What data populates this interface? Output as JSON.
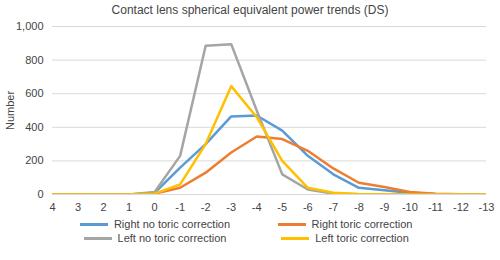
{
  "chart_data": {
    "type": "line",
    "title": "Contact lens spherical equivalent power trends (DS)",
    "y_label": "Number",
    "x": [
      4,
      3,
      2,
      1,
      0,
      -1,
      -2,
      -3,
      -4,
      -5,
      -6,
      -7,
      -8,
      -9,
      -10,
      -11,
      -12,
      -13
    ],
    "xlim": [
      4,
      -13
    ],
    "xticks": [
      4,
      3,
      2,
      1,
      0,
      -1,
      -2,
      -3,
      -4,
      -5,
      -6,
      -7,
      -8,
      -9,
      -10,
      -11,
      -12,
      -13
    ],
    "ylim": [
      0,
      1000
    ],
    "yticks": [
      0,
      200,
      400,
      600,
      800,
      {
        "value": 1000,
        "label": "1,000"
      }
    ],
    "grid": true,
    "legend": "bottom",
    "series": [
      {
        "name": "Right no toric correction",
        "color": "#5b9bd5",
        "values": [
          0,
          0,
          0,
          0,
          10,
          160,
          300,
          465,
          470,
          380,
          230,
          120,
          40,
          25,
          10,
          3,
          1,
          0
        ]
      },
      {
        "name": "Right toric correction",
        "color": "#ed7d31",
        "values": [
          0,
          0,
          0,
          0,
          5,
          40,
          130,
          250,
          345,
          330,
          260,
          155,
          70,
          45,
          15,
          5,
          2,
          0
        ]
      },
      {
        "name": "Left no toric correction",
        "color": "#a5a5a5",
        "values": [
          0,
          0,
          0,
          0,
          15,
          230,
          885,
          895,
          500,
          120,
          30,
          5,
          2,
          0,
          0,
          0,
          0,
          0
        ]
      },
      {
        "name": "Left toric correction",
        "color": "#ffc000",
        "values": [
          0,
          0,
          0,
          0,
          5,
          60,
          300,
          645,
          460,
          200,
          40,
          10,
          3,
          2,
          0,
          0,
          0,
          0
        ]
      }
    ]
  }
}
